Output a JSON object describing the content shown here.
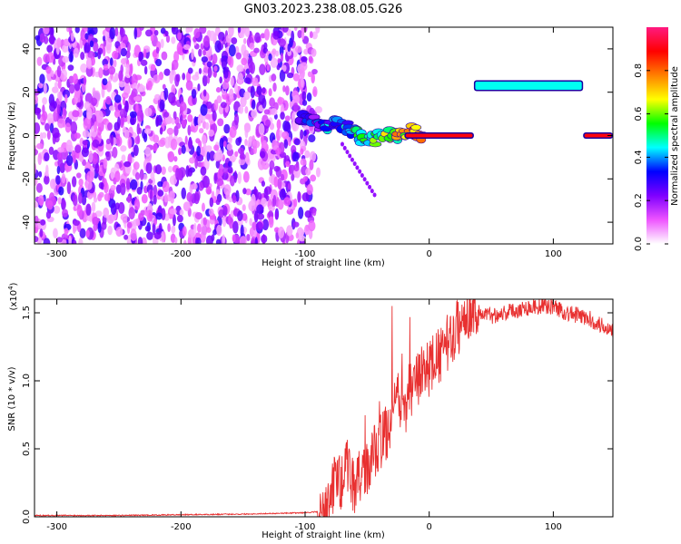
{
  "figure": {
    "title": "GN03.2023.238.08.05.G26"
  },
  "chart_data": [
    {
      "type": "heatmap",
      "xlabel": "Height of straight line (km)",
      "ylabel": "Frequency (Hz)",
      "xlim": [
        -318,
        148
      ],
      "ylim": [
        -50,
        50
      ],
      "xticks": [
        -300,
        -200,
        -100,
        0,
        100
      ],
      "yticks": [
        -40,
        -20,
        0,
        20,
        40
      ],
      "grid": false,
      "noise_region": {
        "x": [
          -318,
          -92
        ],
        "y": [
          -50,
          50
        ],
        "amplitude_range": [
          0.05,
          0.3
        ]
      },
      "features": [
        {
          "name": "scattered track",
          "x": [
            -105,
            -95,
            -85,
            -75,
            -65,
            -55,
            -45,
            -35,
            -25,
            -15,
            -5
          ],
          "y": [
            9,
            7,
            4,
            6,
            3,
            -1,
            -2,
            1,
            0,
            2,
            0
          ],
          "amplitude": [
            0.25,
            0.3,
            0.35,
            0.4,
            0.45,
            0.5,
            0.5,
            0.6,
            0.7,
            0.75,
            0.8
          ]
        },
        {
          "name": "main signal line",
          "x": [
            -20,
            36
          ],
          "y": 0,
          "amplitude": 0.9
        },
        {
          "name": "upper band",
          "x": [
            36,
            124
          ],
          "y": 23,
          "amplitude": 0.45
        },
        {
          "name": "right signal line",
          "x": [
            124,
            148
          ],
          "y": 0,
          "amplitude": 0.9
        }
      ],
      "colorbar": {
        "label": "Normalized spectral amplitude",
        "range": [
          0,
          1
        ],
        "ticks": [
          "0.0",
          "0.2",
          "0.4",
          "0.6",
          "0.8"
        ],
        "colors": [
          "#ffffff",
          "#ee55ff",
          "#7f00ff",
          "#0000ff",
          "#00ffff",
          "#00ff00",
          "#ffff00",
          "#ff8000",
          "#ff0000",
          "#ff1a80"
        ]
      }
    },
    {
      "type": "line",
      "xlabel": "Height of straight line (km)",
      "ylabel": "SNR (10 * v/v)",
      "ylabel_unit": "(x10",
      "ylabel_unit_exp": "4",
      "ylabel_unit_close": ")",
      "xlim": [
        -318,
        148
      ],
      "ylim": [
        0,
        1.6
      ],
      "xticks": [
        -300,
        -200,
        -100,
        0,
        100
      ],
      "yticks": [
        "0.0",
        "0.5",
        "1.0",
        "1.5"
      ],
      "grid": false,
      "series": [
        {
          "color": "#e83030",
          "x": [
            -318,
            -250,
            -200,
            -150,
            -100,
            -85,
            -80,
            -75,
            -70,
            -65,
            -60,
            -55,
            -50,
            -45,
            -40,
            -35,
            -30,
            -25,
            -20,
            -15,
            -10,
            -5,
            0,
            5,
            10,
            15,
            20,
            25,
            30,
            35,
            40,
            50,
            60,
            70,
            80,
            90,
            100,
            110,
            120,
            130,
            140,
            148
          ],
          "y": [
            0.01,
            0.01,
            0.015,
            0.02,
            0.03,
            0.04,
            0.12,
            0.3,
            0.25,
            0.4,
            0.2,
            0.3,
            0.35,
            0.45,
            0.55,
            0.6,
            0.75,
            0.85,
            0.8,
            0.95,
            1.0,
            1.05,
            1.1,
            1.15,
            1.2,
            1.28,
            1.35,
            1.42,
            1.5,
            1.55,
            1.5,
            1.48,
            1.5,
            1.52,
            1.54,
            1.55,
            1.55,
            1.5,
            1.48,
            1.45,
            1.4,
            1.38
          ],
          "noise": 0.09,
          "peaks": [
            {
              "x": -30,
              "y": 1.55
            },
            {
              "x": -22,
              "y": 1.2
            },
            {
              "x": -40,
              "y": 0.85
            }
          ]
        }
      ]
    }
  ]
}
